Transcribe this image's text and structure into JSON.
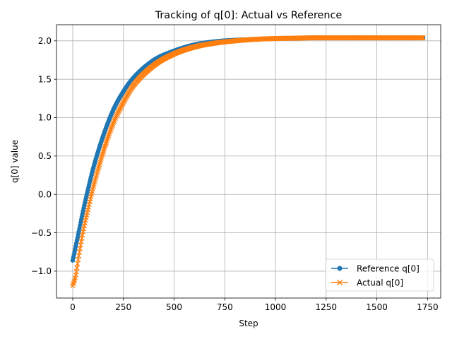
{
  "chart_data": {
    "type": "line",
    "title": "Tracking of q[0]: Actual vs Reference",
    "xlabel": "Step",
    "ylabel": "q[0] value",
    "xlim": [
      -80,
      1815
    ],
    "ylim": [
      -1.35,
      2.21
    ],
    "xticks": [
      0,
      250,
      500,
      750,
      1000,
      1250,
      1500,
      1750
    ],
    "yticks": [
      -1.0,
      -0.5,
      0.0,
      0.5,
      1.0,
      1.5,
      2.0
    ],
    "xtick_labels": [
      "0",
      "250",
      "500",
      "750",
      "1000",
      "1250",
      "1500",
      "1750"
    ],
    "ytick_labels": [
      "−1.0",
      "−0.5",
      "0.0",
      "0.5",
      "1.0",
      "1.5",
      "2.0"
    ],
    "grid": true,
    "legend_position": "lower-right",
    "series": [
      {
        "name": "Reference q[0]",
        "color": "#1f77b4",
        "marker": "circle",
        "x": [
          0,
          25,
          50,
          75,
          100,
          150,
          200,
          250,
          300,
          400,
          500,
          600,
          700,
          800,
          900,
          1000,
          1100,
          1200,
          1300,
          1400,
          1500,
          1600,
          1700,
          1730
        ],
        "y": [
          -0.86,
          -0.55,
          -0.23,
          0.06,
          0.33,
          0.76,
          1.1,
          1.34,
          1.52,
          1.75,
          1.87,
          1.95,
          1.99,
          2.01,
          2.02,
          2.03,
          2.035,
          2.04,
          2.04,
          2.04,
          2.04,
          2.04,
          2.04,
          2.04
        ]
      },
      {
        "name": "Actual q[0]",
        "color": "#ff7f0e",
        "marker": "x",
        "x": [
          0,
          15,
          30,
          50,
          75,
          100,
          150,
          200,
          250,
          300,
          400,
          500,
          600,
          700,
          800,
          900,
          1000,
          1100,
          1200,
          1300,
          1400,
          1500,
          1600,
          1700,
          1730
        ],
        "y": [
          -1.19,
          -1.05,
          -0.8,
          -0.5,
          -0.2,
          0.08,
          0.55,
          0.93,
          1.2,
          1.42,
          1.68,
          1.83,
          1.92,
          1.97,
          2.0,
          2.02,
          2.03,
          2.035,
          2.04,
          2.04,
          2.04,
          2.04,
          2.04,
          2.04,
          2.04
        ]
      }
    ]
  }
}
